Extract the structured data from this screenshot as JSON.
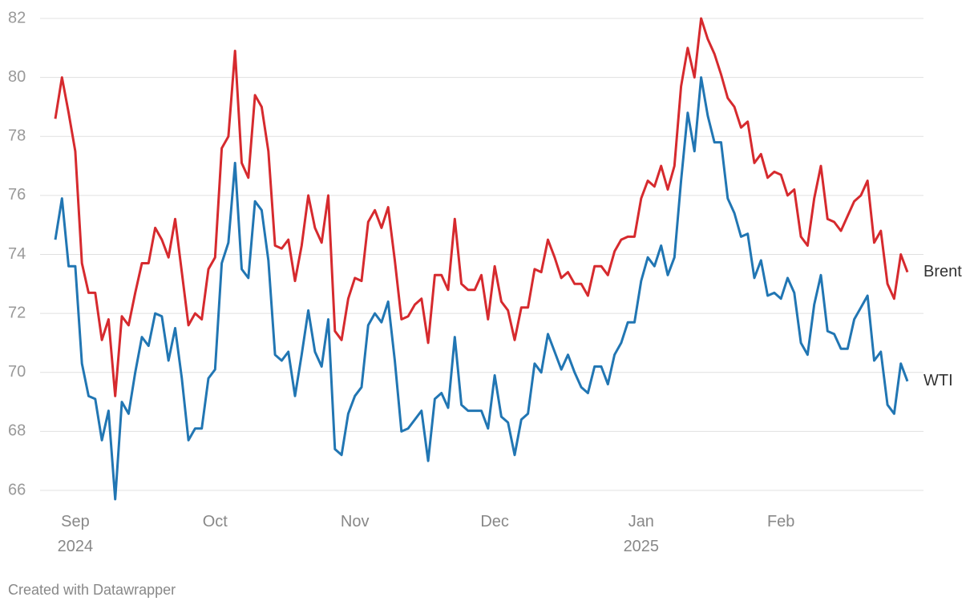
{
  "chart_data": {
    "type": "line",
    "categories": [
      null,
      null,
      null,
      "Sep\n2024",
      null,
      null,
      null,
      null,
      null,
      null,
      null,
      null,
      null,
      null,
      null,
      null,
      null,
      null,
      null,
      null,
      null,
      null,
      null,
      null,
      "Oct",
      null,
      null,
      null,
      null,
      null,
      null,
      null,
      null,
      null,
      null,
      null,
      null,
      null,
      null,
      null,
      null,
      null,
      null,
      null,
      null,
      "Nov",
      null,
      null,
      null,
      null,
      null,
      null,
      null,
      null,
      null,
      null,
      null,
      null,
      null,
      null,
      null,
      null,
      null,
      null,
      null,
      null,
      "Dec",
      null,
      null,
      null,
      null,
      null,
      null,
      null,
      null,
      null,
      null,
      null,
      null,
      null,
      null,
      null,
      null,
      null,
      null,
      null,
      null,
      null,
      "Jan\n2025",
      null,
      null,
      null,
      null,
      null,
      null,
      null,
      null,
      null,
      null,
      null,
      null,
      null,
      null,
      null,
      null,
      null,
      null,
      null,
      null,
      "Feb",
      null,
      null,
      null,
      null,
      null,
      null,
      null,
      null,
      null,
      null,
      null,
      null,
      null,
      null,
      null,
      null,
      null,
      null,
      null
    ],
    "series": [
      {
        "name": "Brent",
        "color": "#d62a2e",
        "values": [
          78.6,
          80.0,
          78.8,
          77.5,
          73.7,
          72.7,
          72.7,
          71.1,
          71.8,
          69.2,
          71.9,
          71.6,
          72.7,
          73.7,
          73.7,
          74.9,
          74.5,
          73.9,
          75.2,
          73.4,
          71.6,
          72.0,
          71.8,
          73.5,
          73.9,
          77.6,
          78.0,
          80.9,
          77.1,
          76.6,
          79.4,
          79.0,
          77.5,
          74.3,
          74.2,
          74.5,
          73.1,
          74.3,
          76.0,
          74.9,
          74.4,
          76.0,
          71.4,
          71.1,
          72.5,
          73.2,
          73.1,
          75.1,
          75.5,
          74.9,
          75.6,
          73.8,
          71.8,
          71.9,
          72.3,
          72.5,
          71.0,
          73.3,
          73.3,
          72.8,
          75.2,
          73.0,
          72.8,
          72.8,
          73.3,
          71.8,
          73.6,
          72.4,
          72.1,
          71.1,
          72.2,
          72.2,
          73.5,
          73.4,
          74.5,
          73.9,
          73.2,
          73.4,
          73.0,
          73.0,
          72.6,
          73.6,
          73.6,
          73.3,
          74.1,
          74.5,
          74.6,
          74.6,
          75.9,
          76.5,
          76.3,
          77.0,
          76.2,
          77.0,
          79.7,
          81.0,
          80.0,
          82.0,
          81.3,
          80.8,
          80.1,
          79.3,
          79.0,
          78.3,
          78.5,
          77.1,
          77.4,
          76.6,
          76.8,
          76.7,
          76.0,
          76.2,
          74.6,
          74.3,
          75.9,
          77.0,
          75.2,
          75.1,
          74.8,
          75.3,
          75.8,
          76.0,
          76.5,
          74.4,
          74.8,
          73.0,
          72.5,
          74.0,
          73.4
        ]
      },
      {
        "name": "WTI",
        "color": "#2176b3",
        "values": [
          74.5,
          75.9,
          73.6,
          73.6,
          70.3,
          69.2,
          69.1,
          67.7,
          68.7,
          65.7,
          69.0,
          68.6,
          70.0,
          71.2,
          70.9,
          72.0,
          71.9,
          70.4,
          71.5,
          69.8,
          67.7,
          68.1,
          68.1,
          69.8,
          70.1,
          73.7,
          74.4,
          77.1,
          73.5,
          73.2,
          75.8,
          75.5,
          73.8,
          70.6,
          70.4,
          70.7,
          69.2,
          70.6,
          72.1,
          70.7,
          70.2,
          71.8,
          67.4,
          67.2,
          68.6,
          69.2,
          69.5,
          71.6,
          72.0,
          71.7,
          72.4,
          70.4,
          68.0,
          68.1,
          68.4,
          68.7,
          67.0,
          69.1,
          69.3,
          68.8,
          71.2,
          68.9,
          68.7,
          68.7,
          68.7,
          68.1,
          69.9,
          68.5,
          68.3,
          67.2,
          68.4,
          68.6,
          70.3,
          70.0,
          71.3,
          70.7,
          70.1,
          70.6,
          70.0,
          69.5,
          69.3,
          70.2,
          70.2,
          69.6,
          70.6,
          71.0,
          71.7,
          71.7,
          73.1,
          73.9,
          73.6,
          74.3,
          73.3,
          73.9,
          76.5,
          78.8,
          77.5,
          80.0,
          78.7,
          77.8,
          77.8,
          75.9,
          75.4,
          74.6,
          74.7,
          73.2,
          73.8,
          72.6,
          72.7,
          72.5,
          73.2,
          72.7,
          71.0,
          70.6,
          72.3,
          73.3,
          71.4,
          71.3,
          70.8,
          70.8,
          71.8,
          72.2,
          72.6,
          70.4,
          70.7,
          68.9,
          68.6,
          70.3,
          69.7
        ]
      }
    ],
    "ylim": [
      66,
      82
    ],
    "yticks": [
      66,
      68,
      70,
      72,
      74,
      76,
      78,
      80,
      82
    ],
    "grid": true,
    "credit": "Created with Datawrapper"
  }
}
